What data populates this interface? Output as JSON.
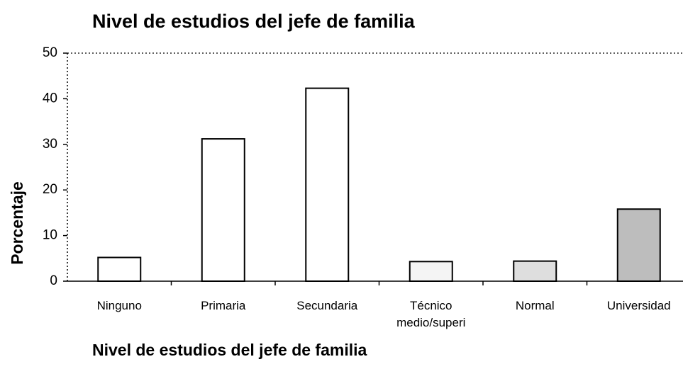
{
  "chart_data": {
    "type": "bar",
    "title": "Nivel de estudios del jefe de familia",
    "x_label": "Nivel de estudios del jefe de familia",
    "y_label": "Porcentaje",
    "categories": [
      "Ninguno",
      "Primaria",
      "Secundaria",
      "Técnico medio/superi",
      "Normal",
      "Universidad"
    ],
    "values": [
      5.2,
      31.2,
      42.3,
      4.3,
      4.4,
      15.8
    ],
    "colors": [
      "#ffffff",
      "#ffffff",
      "#ffffff",
      "#f4f4f4",
      "#dedede",
      "#bdbdbd"
    ],
    "ylim": [
      0,
      50
    ],
    "yticks": [
      0,
      10,
      20,
      30,
      40,
      50
    ],
    "grid": false
  }
}
